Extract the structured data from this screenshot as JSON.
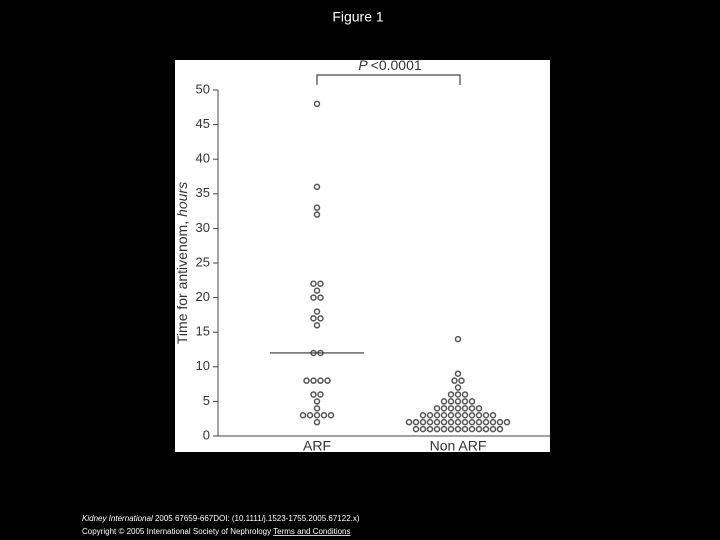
{
  "page_title": "Figure 1",
  "chart_data": {
    "type": "dotplot",
    "annotation_italic": "P",
    "annotation": "<0.0001",
    "y_label": "Time for antivenom,",
    "y_label_italic": "hours",
    "categories": [
      "ARF",
      "Non ARF"
    ],
    "groups": [
      {
        "values": [
          48,
          36,
          33,
          32,
          22,
          22,
          21,
          20,
          20,
          18,
          17,
          17,
          16,
          12,
          12,
          8,
          8,
          8,
          8,
          6,
          6,
          5,
          4,
          3,
          3,
          3,
          3,
          3,
          2
        ],
        "median": 12
      },
      {
        "values": [
          14,
          9,
          8,
          8,
          7,
          6,
          6,
          6,
          5,
          5,
          5,
          5,
          5,
          4,
          4,
          4,
          4,
          4,
          4,
          4,
          3,
          3,
          3,
          3,
          3,
          3,
          3,
          3,
          3,
          3,
          3,
          2,
          2,
          2,
          2,
          2,
          2,
          2,
          2,
          2,
          2,
          2,
          2,
          2,
          2,
          2,
          1,
          1,
          1,
          1,
          1,
          1,
          1,
          1,
          1,
          1,
          1,
          1,
          1
        ]
      }
    ],
    "marker_color": "#555555",
    "ylim": [
      0,
      50
    ],
    "yticks": [
      0,
      5,
      10,
      15,
      20,
      25,
      30,
      35,
      40,
      45,
      50
    ]
  },
  "footer": {
    "journal": "Kidney International",
    "citation": " 2005 67659-667DOI: (10.1111/j.1523-1755.2005.67122.x) ",
    "copyright": "Copyright © 2005 International Society of Nephrology",
    "link": "Terms and Conditions"
  }
}
